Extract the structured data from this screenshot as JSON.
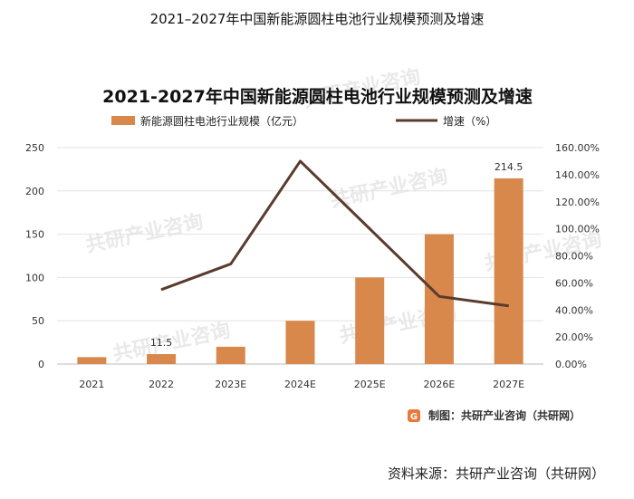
{
  "page_title": "2021–2027年中国新能源圆柱电池行业规模预测及增速",
  "footer": {
    "source_text": "资料来源：共研产业咨询（共研网）"
  },
  "chart_data": {
    "type": "bar",
    "title": "2021-2027年中国新能源圆柱电池行业规模预测及增速",
    "categories": [
      "2021",
      "2022",
      "2023E",
      "2024E",
      "2025E",
      "2026E",
      "2027E"
    ],
    "series": [
      {
        "name": "新能源圆柱电池行业规模（亿元）",
        "type": "bar",
        "axis": "left",
        "color": "#D8884A",
        "values": [
          8,
          11.5,
          20,
          50,
          100,
          150,
          214.5
        ]
      },
      {
        "name": "增速（%）",
        "type": "line",
        "axis": "right",
        "color": "#5A3B2E",
        "values": [
          null,
          55,
          74,
          150,
          100,
          50,
          43
        ]
      }
    ],
    "data_labels": [
      {
        "category": "2022",
        "text": "11.5"
      },
      {
        "category": "2027E",
        "text": "214.5"
      }
    ],
    "y_left": {
      "min": 0,
      "max": 250,
      "ticks": [
        "0",
        "50",
        "100",
        "150",
        "200",
        "250"
      ]
    },
    "y_right": {
      "min": 0,
      "max": 160,
      "ticks": [
        "0.00%",
        "20.00%",
        "40.00%",
        "60.00%",
        "80.00%",
        "100.00%",
        "120.00%",
        "140.00%",
        "160.00%"
      ]
    },
    "grid": true,
    "legend_position": "top",
    "credit": "制图：共研产业咨询（共研网）",
    "watermark": "共研产业咨询"
  }
}
